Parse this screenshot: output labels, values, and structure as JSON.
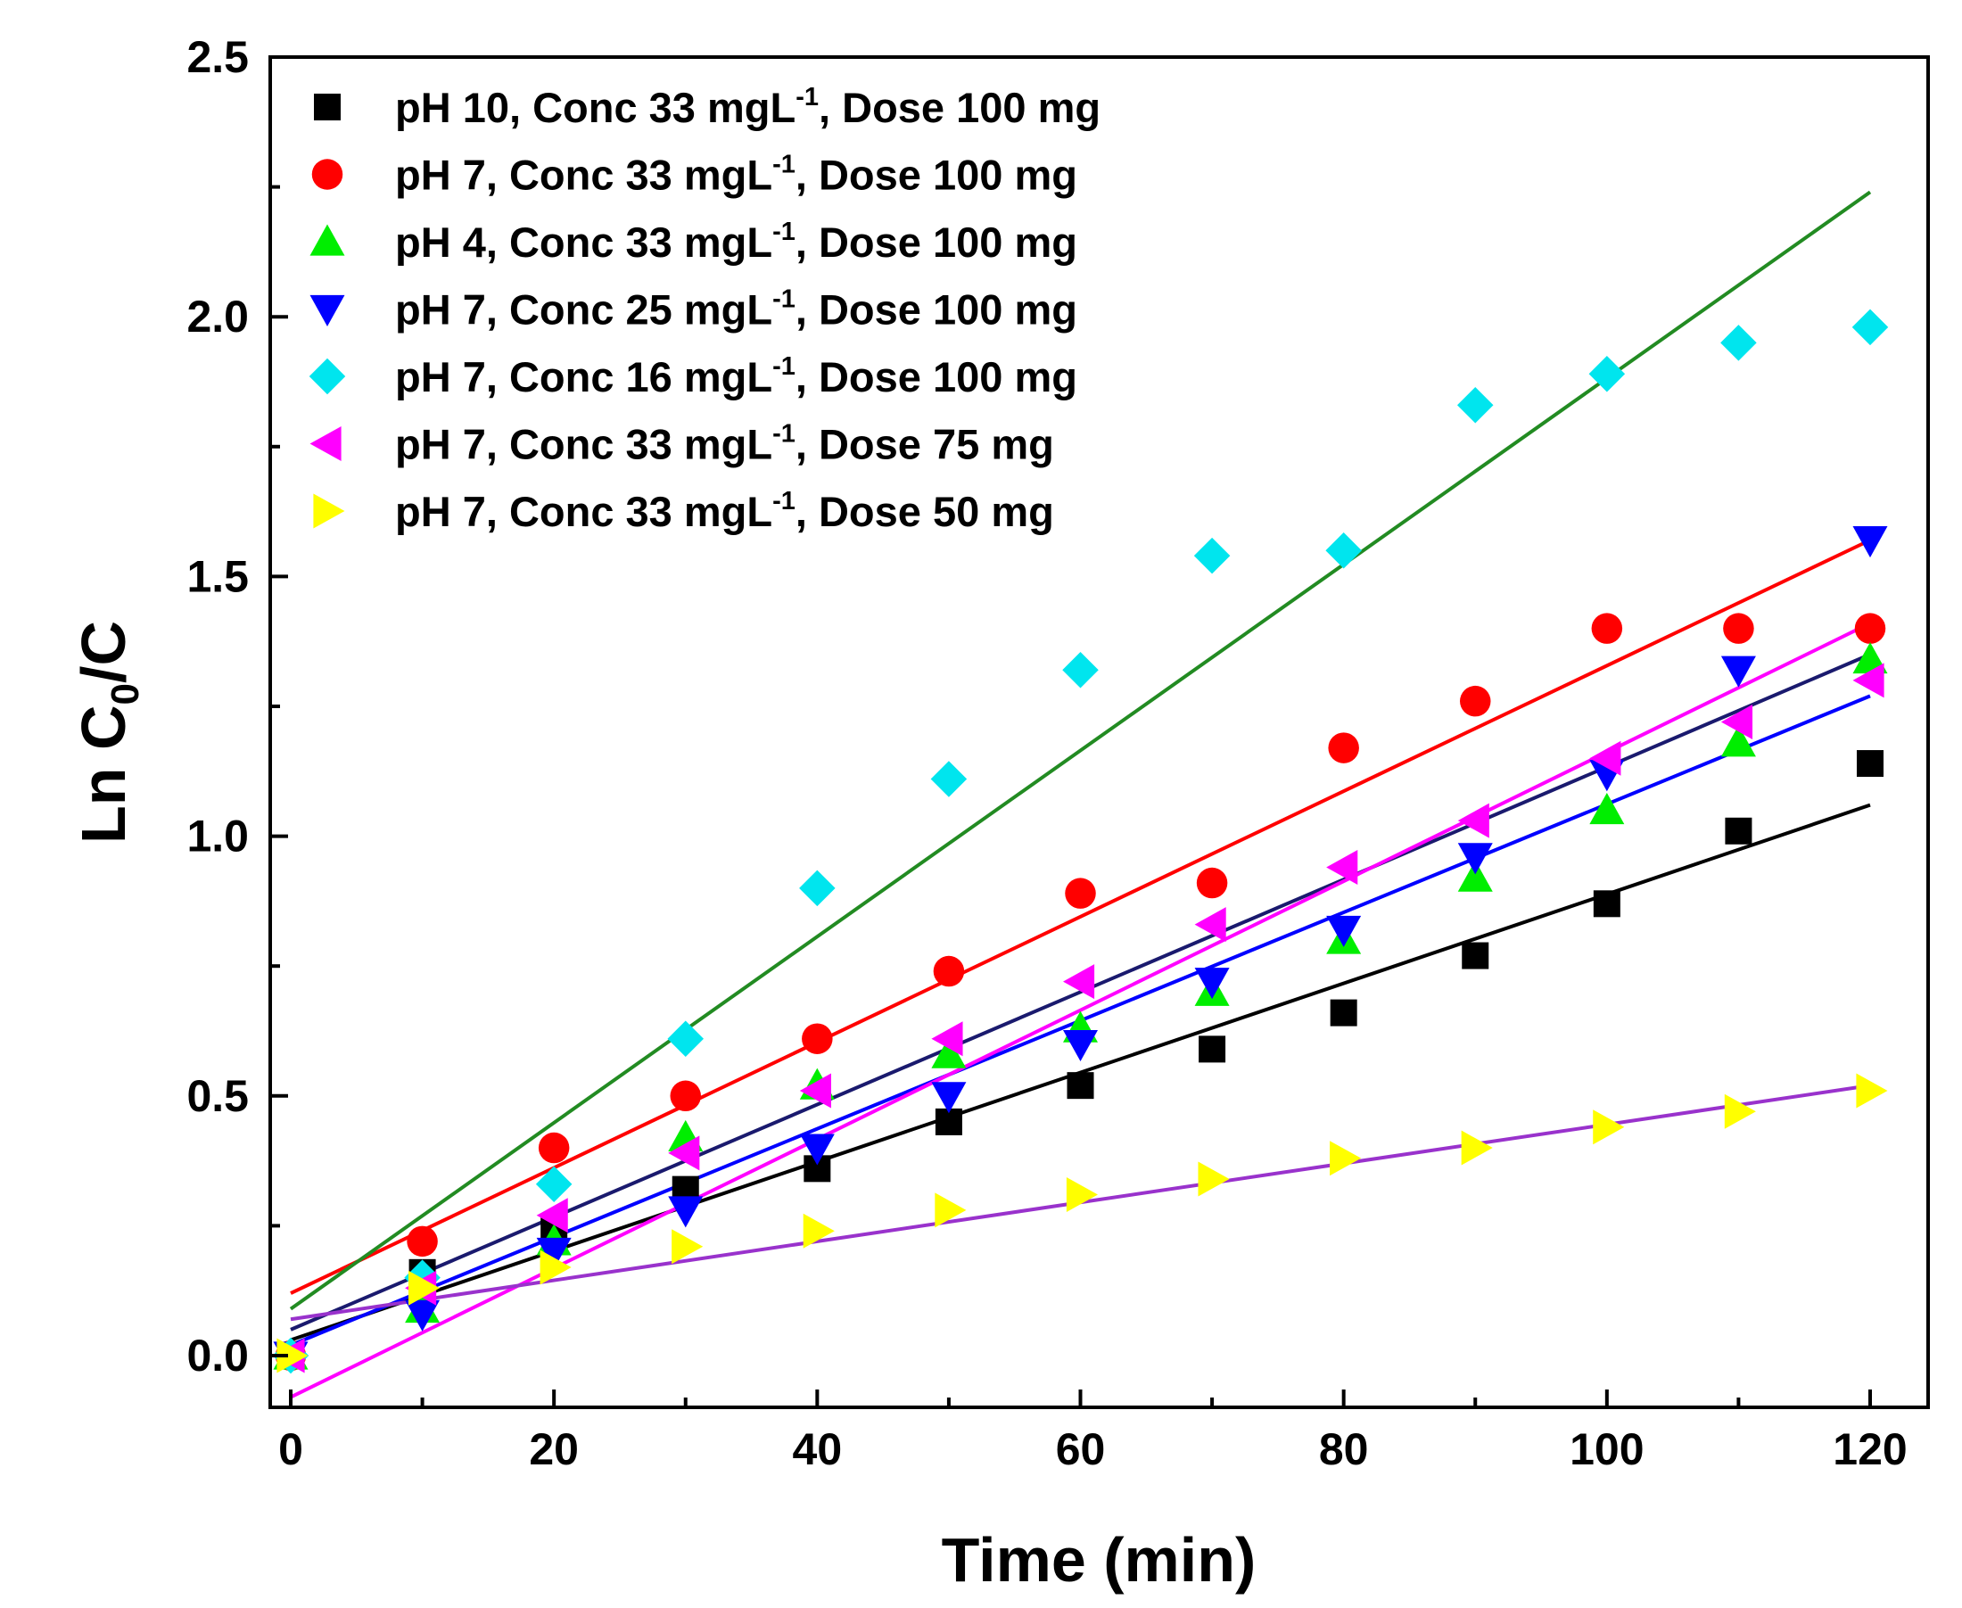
{
  "chart_data": {
    "type": "scatter",
    "title": "",
    "xlabel": "Time (min)",
    "ylabel": {
      "pre": "Ln C",
      "sub": "0",
      "post": "/C"
    },
    "xlim": [
      -3,
      125
    ],
    "ylim": [
      -0.08,
      2.5
    ],
    "xticks": [
      0,
      20,
      40,
      60,
      80,
      100,
      120
    ],
    "xtick_labels": [
      "0",
      "20",
      "40",
      "60",
      "80",
      "100",
      "120"
    ],
    "yticks": [
      0.0,
      0.5,
      1.0,
      1.5,
      2.0,
      2.5
    ],
    "ytick_labels": [
      "0.0",
      "0.5",
      "1.0",
      "1.5",
      "2.0",
      "2.5"
    ],
    "grid": false,
    "legend_position": "top-left",
    "x": [
      0,
      10,
      20,
      30,
      40,
      50,
      60,
      70,
      80,
      90,
      100,
      110,
      120
    ],
    "series": [
      {
        "name": "pH 10, Conc 33 mgL-1, Dose 100 mg",
        "legend": {
          "a": "pH 10, Conc 33 mgL",
          "sup": "-1",
          "b": ", Dose 100 mg"
        },
        "marker": "square",
        "color": "#000000",
        "fit_color": "#000000",
        "values": [
          0.0,
          0.16,
          0.24,
          0.32,
          0.36,
          0.45,
          0.52,
          0.59,
          0.66,
          0.77,
          0.87,
          1.01,
          1.14
        ],
        "fit": [
          0.03,
          1.06
        ]
      },
      {
        "name": "pH 7, Conc 33 mgL-1, Dose 100 mg",
        "legend": {
          "a": "pH 7, Conc 33 mgL",
          "sup": "-1",
          "b": ", Dose 100 mg"
        },
        "marker": "circle",
        "color": "#ff0000",
        "fit_color": "#ff0000",
        "values": [
          0.0,
          0.22,
          0.4,
          0.5,
          0.61,
          0.74,
          0.89,
          0.91,
          1.17,
          1.26,
          1.4,
          1.4,
          1.4
        ],
        "fit": [
          0.12,
          1.57
        ]
      },
      {
        "name": "pH 4, Conc 33 mgL-1, Dose 100 mg",
        "legend": {
          "a": "pH 4, Conc 33 mgL",
          "sup": "-1",
          "b": ", Dose 100 mg"
        },
        "marker": "triangle-up",
        "color": "#00ee00",
        "fit_color": "#1a1a6e",
        "values": [
          0.0,
          0.09,
          0.22,
          0.42,
          0.52,
          0.58,
          0.63,
          0.7,
          0.8,
          0.92,
          1.05,
          1.18,
          1.34
        ],
        "fit": [
          0.05,
          1.35
        ]
      },
      {
        "name": "pH 7, Conc 25 mgL-1, Dose 100 mg",
        "legend": {
          "a": "pH 7, Conc 25 mgL",
          "sup": "-1",
          "b": ", Dose 100 mg"
        },
        "marker": "triangle-down",
        "color": "#0000ff",
        "fit_color": "#0000ff",
        "values": [
          0.0,
          0.08,
          0.2,
          0.28,
          0.4,
          0.5,
          0.6,
          0.72,
          0.82,
          0.96,
          1.12,
          1.32,
          1.57
        ],
        "fit": [
          0.02,
          1.27
        ]
      },
      {
        "name": "pH 7, Conc 16 mgL-1, Dose 100 mg",
        "legend": {
          "a": "pH 7, Conc 16 mgL",
          "sup": "-1",
          "b": ", Dose 100 mg"
        },
        "marker": "diamond",
        "color": "#00e5ee",
        "fit_color": "#228b22",
        "values": [
          0.0,
          0.15,
          0.33,
          0.61,
          0.9,
          1.11,
          1.32,
          1.54,
          1.55,
          1.83,
          1.89,
          1.95,
          1.98
        ],
        "fit": [
          0.09,
          2.24
        ]
      },
      {
        "name": "pH 7, Conc 33 mgL-1, Dose 75 mg",
        "legend": {
          "a": "pH 7, Conc 33 mgL",
          "sup": "-1",
          "b": ", Dose 75 mg"
        },
        "marker": "triangle-left",
        "color": "#ff00ff",
        "fit_color": "#ff00ff",
        "values": [
          0.0,
          0.13,
          0.27,
          0.39,
          0.51,
          0.61,
          0.72,
          0.83,
          0.94,
          1.03,
          1.15,
          1.22,
          1.3
        ],
        "fit": [
          -0.08,
          1.41
        ]
      },
      {
        "name": "pH 7, Conc 33 mgL-1, Dose 50 mg",
        "legend": {
          "a": "pH 7, Conc 33 mgL",
          "sup": "-1",
          "b": ", Dose 50 mg"
        },
        "marker": "triangle-right",
        "color": "#ffff00",
        "fit_color": "#9932cc",
        "values": [
          0.0,
          0.13,
          0.17,
          0.21,
          0.24,
          0.28,
          0.31,
          0.34,
          0.38,
          0.4,
          0.44,
          0.47,
          0.51
        ],
        "fit": [
          0.07,
          0.52
        ]
      }
    ]
  }
}
